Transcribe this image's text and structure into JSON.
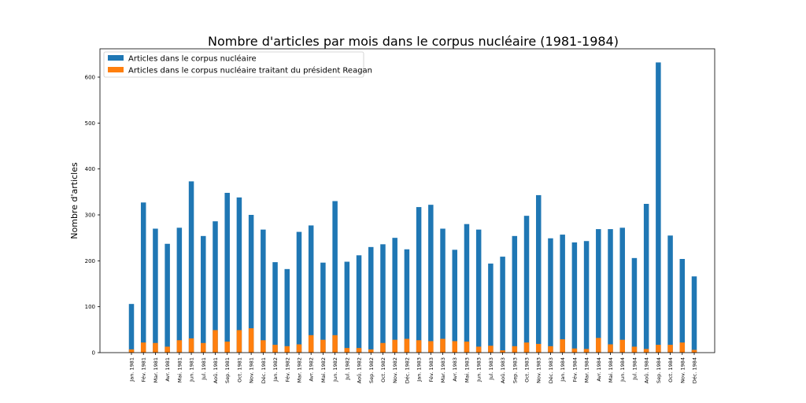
{
  "chart_data": {
    "type": "bar",
    "stacked_overlay": true,
    "title": "Nombre d'articles par mois dans le corpus nucléaire (1981-1984)",
    "xlabel": "",
    "ylabel": "Nombre d'articles",
    "ylim": [
      0,
      665
    ],
    "yticks": [
      0,
      100,
      200,
      300,
      400,
      500,
      600
    ],
    "grid": false,
    "legend_position": "top-left",
    "categories": [
      "Jan. 1981",
      "Fév. 1981",
      "Mar. 1981",
      "Avr. 1981",
      "Mai. 1981",
      "Jun. 1981",
      "Jul. 1981",
      "Aoû. 1981",
      "Sep. 1981",
      "Oct. 1981",
      "Nov. 1981",
      "Déc. 1981",
      "Jan. 1982",
      "Fév. 1982",
      "Mar. 1982",
      "Avr. 1982",
      "Mai. 1982",
      "Jun. 1982",
      "Jul. 1982",
      "Aoû. 1982",
      "Sep. 1982",
      "Oct. 1982",
      "Nov. 1982",
      "Déc. 1982",
      "Jan. 1983",
      "Fév. 1983",
      "Mar. 1983",
      "Avr. 1983",
      "Mai. 1983",
      "Jun. 1983",
      "Jul. 1983",
      "Aoû. 1983",
      "Sep. 1983",
      "Oct. 1983",
      "Nov. 1983",
      "Déc. 1983",
      "Jan. 1984",
      "Fév. 1984",
      "Mar. 1984",
      "Avr. 1984",
      "Mai. 1984",
      "Jun. 1984",
      "Jul. 1984",
      "Aoû. 1984",
      "Sep. 1984",
      "Oct. 1984",
      "Nov. 1984",
      "Déc. 1984"
    ],
    "series": [
      {
        "name": "Articles dans le corpus nucléaire",
        "color": "#1f77b4",
        "values": [
          106,
          327,
          270,
          237,
          272,
          373,
          254,
          286,
          348,
          338,
          300,
          268,
          197,
          182,
          263,
          277,
          196,
          330,
          198,
          212,
          230,
          236,
          250,
          225,
          317,
          322,
          270,
          224,
          280,
          268,
          194,
          209,
          254,
          298,
          343,
          249,
          257,
          240,
          243,
          269,
          269,
          272,
          206,
          324,
          632,
          255,
          204,
          166
        ]
      },
      {
        "name": "Articles dans le corpus nucléaire traitant du président Reagan",
        "color": "#ff7f0e",
        "values": [
          7,
          22,
          21,
          13,
          27,
          31,
          21,
          49,
          24,
          49,
          53,
          27,
          17,
          14,
          18,
          38,
          28,
          38,
          10,
          10,
          7,
          21,
          28,
          30,
          27,
          25,
          30,
          25,
          24,
          13,
          15,
          5,
          14,
          22,
          19,
          14,
          29,
          9,
          8,
          32,
          18,
          28,
          13,
          8,
          17,
          17,
          22,
          6
        ]
      }
    ]
  }
}
